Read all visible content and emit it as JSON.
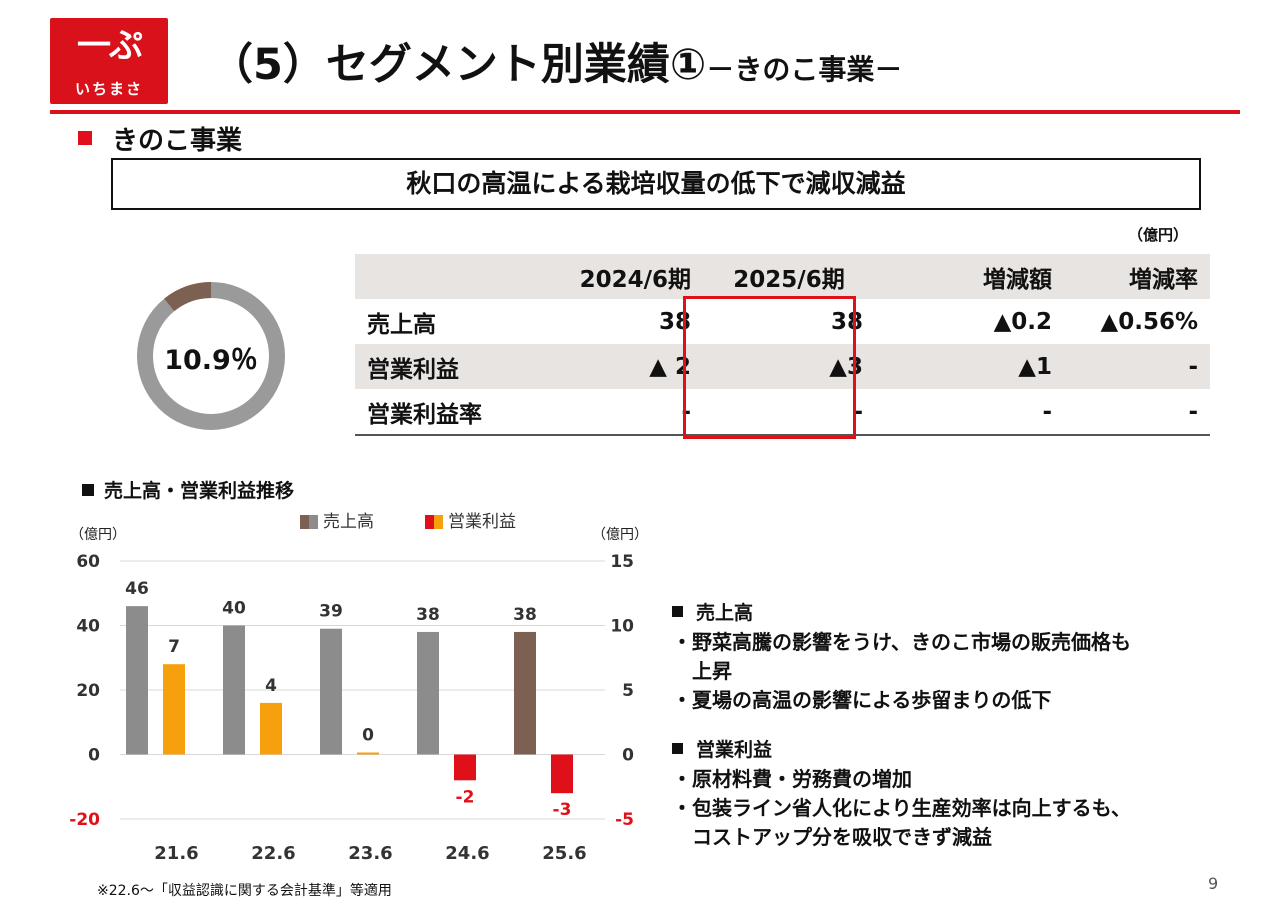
{
  "header": {
    "logo_mark": "一ぷ",
    "logo_text": "いちまさ",
    "title": "（5）セグメント別業績①",
    "subtitle": "－きのこ事業－"
  },
  "section": {
    "heading": "きのこ事業",
    "summary": "秋口の高温による栽培収量の低下で減収減益",
    "unit": "（億円）"
  },
  "donut": {
    "label": "10.9％",
    "share": 0.109,
    "colors": {
      "segment": "#7c6152",
      "rest": "#9a9a9a"
    }
  },
  "table": {
    "columns": [
      "",
      "2024/6期",
      "2025/6期",
      "増減額",
      "増減率"
    ],
    "rows": [
      {
        "label": "売上高",
        "prev": "38",
        "curr": "38",
        "diff": "▲0.2",
        "rate": "▲0.56%"
      },
      {
        "label": "営業利益",
        "prev": "▲ 2",
        "curr": "▲3",
        "diff": "▲1",
        "rate": "-"
      },
      {
        "label": "営業利益率",
        "prev": "-",
        "curr": "-",
        "diff": "-",
        "rate": "-"
      }
    ]
  },
  "chart_title": "売上高・営業利益推移",
  "chart_data": {
    "type": "bar",
    "categories": [
      "21.6",
      "22.6",
      "23.6",
      "24.6",
      "25.6"
    ],
    "series": [
      {
        "name": "売上高",
        "axis": "left",
        "values": [
          46,
          40,
          39,
          38,
          38
        ],
        "labels": [
          "46",
          "40",
          "39",
          "38",
          "38"
        ],
        "color": "#8c8c8c",
        "highlight_color": "#7c6152"
      },
      {
        "name": "営業利益",
        "axis": "right",
        "values": [
          7,
          4,
          0,
          -2,
          -3
        ],
        "labels": [
          "7",
          "4",
          "0",
          "-2",
          "-3"
        ],
        "color": "#f5a00c",
        "negative_color": "#e0101a"
      }
    ],
    "left_axis": {
      "unit": "（億円）",
      "ylim": [
        -20,
        60
      ],
      "ticks": [
        "60",
        "40",
        "20",
        "0",
        "-20"
      ]
    },
    "right_axis": {
      "unit": "（億円）",
      "ylim": [
        -5,
        15
      ],
      "ticks": [
        "15",
        "10",
        "5",
        "0",
        "-5"
      ]
    },
    "grid": true,
    "legend_position": "top"
  },
  "notes": [
    {
      "heading": "売上高",
      "lines": [
        "・野菜高騰の影響をうけ、きのこ市場の販売価格も",
        "　上昇",
        "・夏場の高温の影響による歩留まりの低下"
      ]
    },
    {
      "heading": "営業利益",
      "lines": [
        "・原材料費・労務費の増加",
        "・包装ライン省人化により生産効率は向上するも、",
        "　コストアップ分を吸収できず減益"
      ]
    }
  ],
  "footnote": "※22.6～「収益認識に関する会計基準」等適用",
  "page_number": "9"
}
